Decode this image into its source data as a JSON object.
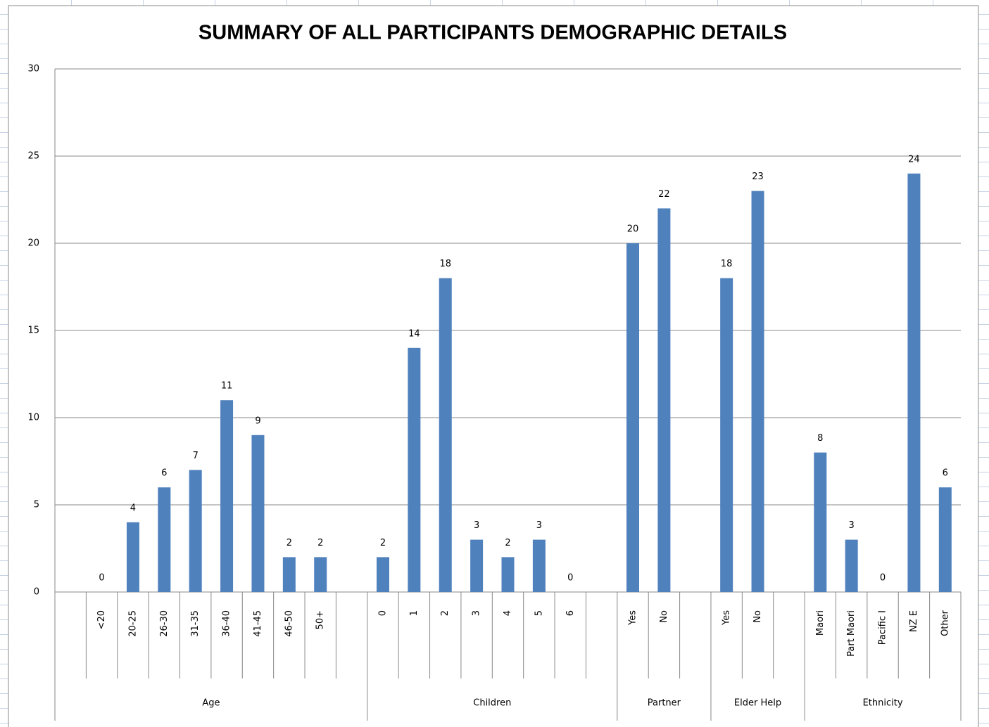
{
  "chart_data": {
    "type": "bar",
    "title": "SUMMARY OF ALL PARTICIPANTS DEMOGRAPHIC DETAILS",
    "color": "#4f81bd",
    "ylim": [
      0,
      30
    ],
    "yticks": [
      0,
      5,
      10,
      15,
      20,
      25,
      30
    ],
    "grid": true,
    "groups": [
      {
        "name": "Age",
        "categories": [
          null,
          "<20",
          "20-25",
          "26-30",
          "31-35",
          "36-40",
          "41-45",
          "46-50",
          "50+",
          null
        ],
        "values": [
          null,
          0,
          4,
          6,
          7,
          11,
          9,
          2,
          2,
          null
        ]
      },
      {
        "name": "Children",
        "categories": [
          "0",
          "1",
          "2",
          "3",
          "4",
          "5",
          "6",
          null
        ],
        "values": [
          2,
          14,
          18,
          3,
          2,
          3,
          0,
          null
        ]
      },
      {
        "name": "Partner",
        "categories": [
          "Yes",
          "No",
          null
        ],
        "values": [
          20,
          22,
          null
        ]
      },
      {
        "name": "Elder Help",
        "categories": [
          "Yes",
          "No",
          null
        ],
        "values": [
          18,
          23,
          null
        ]
      },
      {
        "name": "Ethnicity",
        "categories": [
          "Maori",
          "Part Maori",
          "Pacific I",
          "NZ E",
          "Other"
        ],
        "values": [
          8,
          3,
          0,
          24,
          6
        ]
      }
    ]
  }
}
